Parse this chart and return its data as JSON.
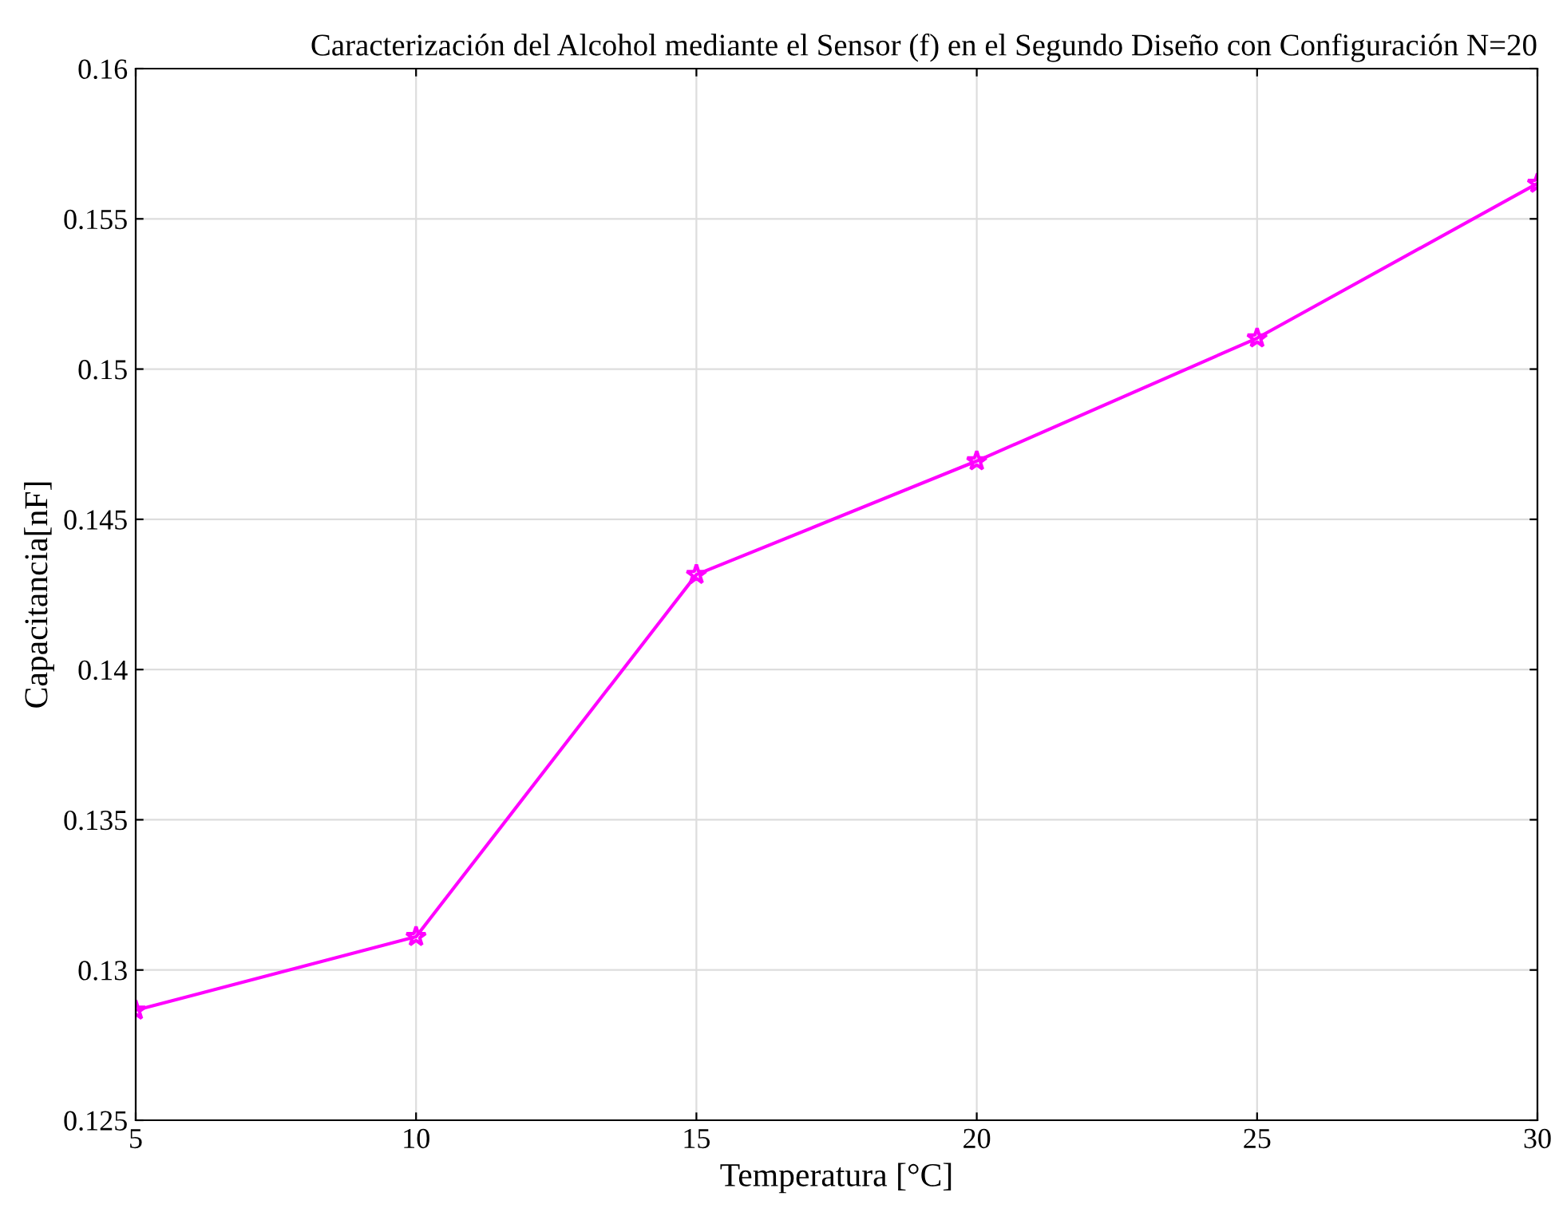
{
  "chart_data": {
    "type": "line",
    "title": "Caracterización del Alcohol mediante el Sensor (f) en el Segundo Diseño con Configuración N=20",
    "xlabel": "Temperatura [°C]",
    "ylabel": "Capacitancia[nF]",
    "x": [
      5,
      10,
      15,
      20,
      25,
      30
    ],
    "series": [
      {
        "color": "#ff00ff",
        "values": [
          0.12866,
          0.13111,
          0.14316,
          0.14694,
          0.15103,
          0.15618
        ]
      }
    ],
    "xlim": [
      5,
      30
    ],
    "xticks": [
      5,
      10,
      15,
      20,
      25,
      30
    ],
    "ylim": [
      0.125,
      0.16
    ],
    "yticks": [
      0.125,
      0.13,
      0.135,
      0.14,
      0.145,
      0.15,
      0.155,
      0.16
    ],
    "grid": true,
    "marker": "star",
    "line_style": "solid"
  }
}
